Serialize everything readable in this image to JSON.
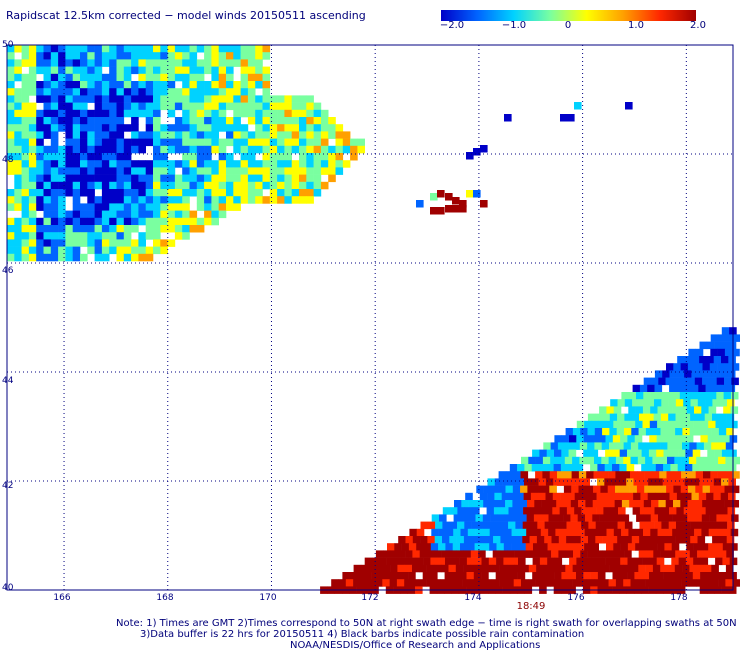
{
  "title": "Rapidscat 12.5km corrected − model winds 20150511 ascending",
  "colorbar": {
    "ticks": [
      "−2.0",
      "−1.0",
      "0",
      "1.0",
      "2.0"
    ],
    "range": [
      -2.0,
      2.0
    ],
    "colors": [
      "#0000c8",
      "#0064ff",
      "#00d2ff",
      "#7affa0",
      "#ffff00",
      "#ffa000",
      "#ff2800",
      "#a00000"
    ]
  },
  "map": {
    "lat_labels": [
      "50",
      "48",
      "46",
      "44",
      "42",
      "40"
    ],
    "lon_labels": [
      "166",
      "168",
      "170",
      "172",
      "174",
      "176",
      "178"
    ],
    "lat_range": [
      40,
      50
    ],
    "lon_range": [
      164.9,
      178.9
    ],
    "gridlines": "dotted",
    "swath_time": "18:49"
  },
  "notes": {
    "line1": "Note: 1) Times are GMT 2)Times correspond to 50N at right swath edge − time is right swath for overlapping swaths at 50N",
    "line2": "3)Data buffer is 22 hrs for 20150511 4) Black barbs indicate possible rain contamination",
    "line3": "NOAA/NESDIS/Office of Research and Applications"
  }
}
